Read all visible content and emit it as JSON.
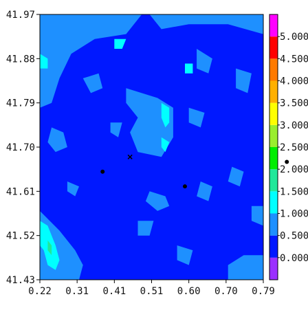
{
  "chart_data": {
    "type": "heatmap",
    "title": "",
    "xlabel": "",
    "ylabel": "",
    "x_ticks": [
      "0.22",
      "0.31",
      "0.41",
      "0.51",
      "0.60",
      "0.70",
      "0.79"
    ],
    "y_ticks": [
      "41.97",
      "41.88",
      "41.79",
      "41.70",
      "41.61",
      "41.52",
      "41.43"
    ],
    "xlim": [
      0.22,
      0.79
    ],
    "ylim": [
      41.43,
      41.97
    ],
    "colorbar": {
      "ticks": [
        "0.000",
        "0.500",
        "1.000",
        "1.500",
        "2.000",
        "2.500",
        "3.000",
        "3.500",
        "4.000",
        "4.500",
        "5.000"
      ],
      "levels": [
        {
          "min": -0.5,
          "max": 0.0,
          "color": "#9b30ff"
        },
        {
          "min": 0.0,
          "max": 0.5,
          "color": "#0018ff"
        },
        {
          "min": 0.5,
          "max": 1.0,
          "color": "#1e90ff"
        },
        {
          "min": 1.0,
          "max": 1.5,
          "color": "#00ffff"
        },
        {
          "min": 1.5,
          "max": 2.0,
          "color": "#20e89a"
        },
        {
          "min": 2.0,
          "max": 2.5,
          "color": "#00ee00"
        },
        {
          "min": 2.5,
          "max": 3.0,
          "color": "#9aee2e"
        },
        {
          "min": 3.0,
          "max": 3.5,
          "color": "#ffff00"
        },
        {
          "min": 3.5,
          "max": 4.0,
          "color": "#ffb000"
        },
        {
          "min": 4.0,
          "max": 4.5,
          "color": "#ff7a00"
        },
        {
          "min": 4.5,
          "max": 5.0,
          "color": "#ff0000"
        },
        {
          "min": 5.0,
          "max": 5.5,
          "color": "#ff00ff"
        }
      ]
    },
    "background_level": 0.25,
    "regions": [
      {
        "level": 0.75,
        "points": [
          [
            0.22,
            41.97
          ],
          [
            0.48,
            41.97
          ],
          [
            0.44,
            41.93
          ],
          [
            0.36,
            41.92
          ],
          [
            0.3,
            41.89
          ],
          [
            0.27,
            41.84
          ],
          [
            0.25,
            41.79
          ],
          [
            0.22,
            41.78
          ]
        ]
      },
      {
        "level": 0.75,
        "points": [
          [
            0.5,
            41.97
          ],
          [
            0.79,
            41.97
          ],
          [
            0.79,
            41.93
          ],
          [
            0.7,
            41.95
          ],
          [
            0.6,
            41.95
          ],
          [
            0.53,
            41.94
          ]
        ]
      },
      {
        "level": 0.75,
        "points": [
          [
            0.44,
            41.82
          ],
          [
            0.52,
            41.8
          ],
          [
            0.56,
            41.78
          ],
          [
            0.56,
            41.72
          ],
          [
            0.53,
            41.68
          ],
          [
            0.47,
            41.69
          ],
          [
            0.45,
            41.73
          ],
          [
            0.47,
            41.76
          ],
          [
            0.44,
            41.79
          ]
        ]
      },
      {
        "level": 0.75,
        "points": [
          [
            0.22,
            41.57
          ],
          [
            0.27,
            41.53
          ],
          [
            0.31,
            41.49
          ],
          [
            0.33,
            41.46
          ],
          [
            0.32,
            41.43
          ],
          [
            0.22,
            41.43
          ]
        ]
      },
      {
        "level": 0.75,
        "points": [
          [
            0.7,
            41.43
          ],
          [
            0.79,
            41.43
          ],
          [
            0.79,
            41.48
          ],
          [
            0.74,
            41.48
          ],
          [
            0.7,
            41.46
          ]
        ]
      },
      {
        "level": 0.75,
        "points": [
          [
            0.25,
            41.74
          ],
          [
            0.28,
            41.73
          ],
          [
            0.29,
            41.7
          ],
          [
            0.26,
            41.69
          ],
          [
            0.24,
            41.71
          ]
        ]
      },
      {
        "level": 0.75,
        "points": [
          [
            0.5,
            41.61
          ],
          [
            0.54,
            41.6
          ],
          [
            0.55,
            41.58
          ],
          [
            0.52,
            41.57
          ],
          [
            0.49,
            41.59
          ]
        ]
      },
      {
        "level": 0.75,
        "points": [
          [
            0.62,
            41.9
          ],
          [
            0.66,
            41.88
          ],
          [
            0.65,
            41.85
          ],
          [
            0.62,
            41.86
          ]
        ]
      },
      {
        "level": 0.75,
        "points": [
          [
            0.72,
            41.86
          ],
          [
            0.76,
            41.85
          ],
          [
            0.75,
            41.81
          ],
          [
            0.72,
            41.82
          ]
        ]
      },
      {
        "level": 0.75,
        "points": [
          [
            0.6,
            41.78
          ],
          [
            0.64,
            41.77
          ],
          [
            0.63,
            41.74
          ],
          [
            0.6,
            41.75
          ]
        ]
      },
      {
        "level": 0.75,
        "points": [
          [
            0.33,
            41.84
          ],
          [
            0.37,
            41.85
          ],
          [
            0.38,
            41.82
          ],
          [
            0.35,
            41.81
          ]
        ]
      },
      {
        "level": 0.75,
        "points": [
          [
            0.71,
            41.66
          ],
          [
            0.74,
            41.65
          ],
          [
            0.73,
            41.62
          ],
          [
            0.7,
            41.63
          ]
        ]
      },
      {
        "level": 0.75,
        "points": [
          [
            0.47,
            41.55
          ],
          [
            0.51,
            41.55
          ],
          [
            0.5,
            41.52
          ],
          [
            0.47,
            41.52
          ]
        ]
      },
      {
        "level": 0.75,
        "points": [
          [
            0.63,
            41.63
          ],
          [
            0.66,
            41.62
          ],
          [
            0.65,
            41.59
          ],
          [
            0.62,
            41.6
          ]
        ]
      },
      {
        "level": 0.75,
        "points": [
          [
            0.29,
            41.63
          ],
          [
            0.32,
            41.62
          ],
          [
            0.31,
            41.6
          ],
          [
            0.29,
            41.61
          ]
        ]
      },
      {
        "level": 0.75,
        "points": [
          [
            0.4,
            41.75
          ],
          [
            0.43,
            41.75
          ],
          [
            0.42,
            41.72
          ],
          [
            0.4,
            41.73
          ]
        ]
      },
      {
        "level": 0.75,
        "points": [
          [
            0.76,
            41.58
          ],
          [
            0.79,
            41.58
          ],
          [
            0.79,
            41.54
          ],
          [
            0.76,
            41.55
          ]
        ]
      },
      {
        "level": 0.75,
        "points": [
          [
            0.57,
            41.5
          ],
          [
            0.61,
            41.49
          ],
          [
            0.6,
            41.46
          ],
          [
            0.57,
            41.47
          ]
        ]
      },
      {
        "level": 1.25,
        "points": [
          [
            0.22,
            41.55
          ],
          [
            0.24,
            41.54
          ],
          [
            0.26,
            41.5
          ],
          [
            0.27,
            41.47
          ],
          [
            0.26,
            41.45
          ],
          [
            0.24,
            41.46
          ],
          [
            0.23,
            41.49
          ],
          [
            0.22,
            41.5
          ]
        ]
      },
      {
        "level": 1.25,
        "points": [
          [
            0.53,
            41.79
          ],
          [
            0.55,
            41.78
          ],
          [
            0.55,
            41.75
          ],
          [
            0.54,
            41.74
          ],
          [
            0.53,
            41.76
          ]
        ]
      },
      {
        "level": 1.25,
        "points": [
          [
            0.53,
            41.72
          ],
          [
            0.55,
            41.71
          ],
          [
            0.54,
            41.69
          ],
          [
            0.53,
            41.7
          ]
        ]
      },
      {
        "level": 1.25,
        "points": [
          [
            0.22,
            41.89
          ],
          [
            0.24,
            41.88
          ],
          [
            0.24,
            41.86
          ],
          [
            0.22,
            41.86
          ]
        ]
      },
      {
        "level": 1.25,
        "points": [
          [
            0.41,
            41.92
          ],
          [
            0.44,
            41.92
          ],
          [
            0.43,
            41.9
          ],
          [
            0.41,
            41.9
          ]
        ]
      },
      {
        "level": 1.25,
        "points": [
          [
            0.59,
            41.87
          ],
          [
            0.61,
            41.87
          ],
          [
            0.61,
            41.85
          ],
          [
            0.59,
            41.85
          ]
        ]
      },
      {
        "level": 1.75,
        "points": [
          [
            0.24,
            41.51
          ],
          [
            0.25,
            41.5
          ],
          [
            0.25,
            41.48
          ],
          [
            0.24,
            41.49
          ]
        ]
      }
    ],
    "points": [
      {
        "x": 0.38,
        "y": 41.65,
        "marker": "dot"
      },
      {
        "x": 0.59,
        "y": 41.62,
        "marker": "dot"
      },
      {
        "x": 0.45,
        "y": 41.68,
        "marker": "x"
      },
      {
        "x": 0.85,
        "y": 41.67,
        "marker": "dot"
      }
    ]
  }
}
